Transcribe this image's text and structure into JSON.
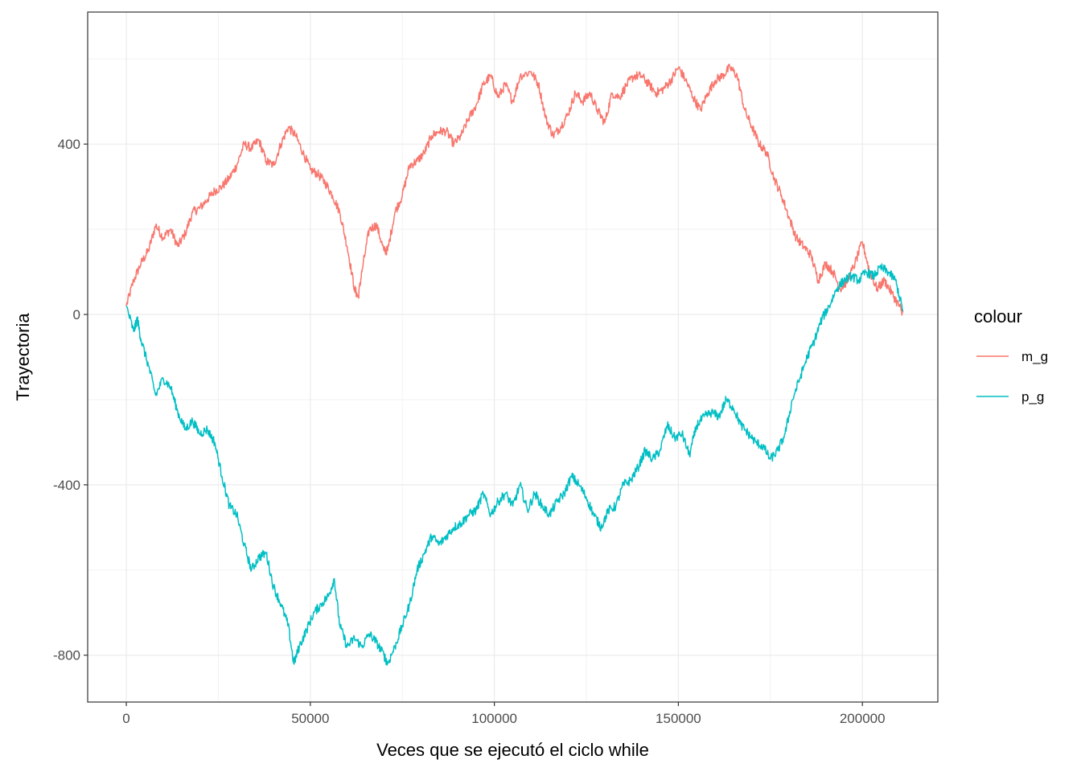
{
  "chart_data": {
    "type": "line",
    "title": "",
    "xlabel": "Veces que se ejecutó el ciclo while",
    "ylabel": "Trayectoria",
    "xlim": [
      -10500,
      220500
    ],
    "ylim": [
      -910,
      710
    ],
    "x_ticks": [
      0,
      50000,
      100000,
      150000,
      200000
    ],
    "x_tick_labels": [
      "0",
      "50000",
      "100000",
      "150000",
      "200000"
    ],
    "y_ticks": [
      -800,
      -400,
      0,
      400
    ],
    "y_tick_labels": [
      "-800",
      "-400",
      "0",
      "400"
    ],
    "grid": true,
    "legend": {
      "title": "colour",
      "placement": "right"
    },
    "series": [
      {
        "name": "m_g",
        "color": "#F8766D",
        "points": [
          [
            0,
            20
          ],
          [
            2000,
            80
          ],
          [
            4000,
            120
          ],
          [
            6000,
            150
          ],
          [
            8000,
            210
          ],
          [
            10000,
            180
          ],
          [
            12000,
            200
          ],
          [
            14000,
            160
          ],
          [
            16000,
            190
          ],
          [
            18000,
            240
          ],
          [
            20000,
            250
          ],
          [
            22000,
            270
          ],
          [
            24000,
            290
          ],
          [
            26000,
            300
          ],
          [
            28000,
            320
          ],
          [
            30000,
            350
          ],
          [
            32000,
            400
          ],
          [
            34000,
            390
          ],
          [
            36000,
            410
          ],
          [
            38000,
            360
          ],
          [
            40000,
            350
          ],
          [
            42000,
            400
          ],
          [
            44000,
            440
          ],
          [
            46000,
            420
          ],
          [
            48000,
            380
          ],
          [
            50000,
            340
          ],
          [
            52000,
            330
          ],
          [
            54000,
            310
          ],
          [
            56000,
            280
          ],
          [
            58000,
            240
          ],
          [
            60000,
            160
          ],
          [
            62000,
            60
          ],
          [
            63000,
            40
          ],
          [
            64000,
            100
          ],
          [
            66000,
            200
          ],
          [
            68000,
            210
          ],
          [
            70000,
            150
          ],
          [
            71000,
            150
          ],
          [
            73000,
            240
          ],
          [
            75000,
            280
          ],
          [
            77000,
            350
          ],
          [
            79000,
            360
          ],
          [
            81000,
            380
          ],
          [
            83000,
            420
          ],
          [
            85000,
            430
          ],
          [
            87000,
            430
          ],
          [
            89000,
            400
          ],
          [
            91000,
            420
          ],
          [
            93000,
            460
          ],
          [
            95000,
            490
          ],
          [
            97000,
            540
          ],
          [
            99000,
            560
          ],
          [
            101000,
            510
          ],
          [
            103000,
            540
          ],
          [
            105000,
            500
          ],
          [
            107000,
            560
          ],
          [
            110000,
            570
          ],
          [
            112000,
            540
          ],
          [
            114000,
            460
          ],
          [
            116000,
            420
          ],
          [
            118000,
            440
          ],
          [
            120000,
            470
          ],
          [
            122000,
            520
          ],
          [
            124000,
            500
          ],
          [
            126000,
            520
          ],
          [
            128000,
            480
          ],
          [
            130000,
            450
          ],
          [
            132000,
            520
          ],
          [
            134000,
            510
          ],
          [
            136000,
            540
          ],
          [
            138000,
            560
          ],
          [
            140000,
            560
          ],
          [
            142000,
            540
          ],
          [
            144000,
            520
          ],
          [
            146000,
            530
          ],
          [
            148000,
            550
          ],
          [
            150000,
            580
          ],
          [
            152000,
            550
          ],
          [
            154000,
            510
          ],
          [
            156000,
            480
          ],
          [
            158000,
            520
          ],
          [
            160000,
            550
          ],
          [
            162000,
            560
          ],
          [
            164000,
            580
          ],
          [
            166000,
            560
          ],
          [
            168000,
            480
          ],
          [
            170000,
            440
          ],
          [
            172000,
            400
          ],
          [
            174000,
            380
          ],
          [
            176000,
            320
          ],
          [
            178000,
            280
          ],
          [
            180000,
            230
          ],
          [
            182000,
            180
          ],
          [
            184000,
            160
          ],
          [
            186000,
            140
          ],
          [
            188000,
            80
          ],
          [
            190000,
            120
          ],
          [
            192000,
            100
          ],
          [
            194000,
            60
          ],
          [
            196000,
            80
          ],
          [
            198000,
            120
          ],
          [
            200000,
            170
          ],
          [
            202000,
            100
          ],
          [
            204000,
            60
          ],
          [
            206000,
            80
          ],
          [
            208000,
            50
          ],
          [
            210000,
            20
          ],
          [
            211000,
            5
          ]
        ]
      },
      {
        "name": "p_g",
        "color": "#00BFC4",
        "points": [
          [
            0,
            20
          ],
          [
            2000,
            -40
          ],
          [
            3000,
            -10
          ],
          [
            4000,
            -60
          ],
          [
            6000,
            -120
          ],
          [
            8000,
            -190
          ],
          [
            10000,
            -150
          ],
          [
            12000,
            -170
          ],
          [
            14000,
            -230
          ],
          [
            16000,
            -270
          ],
          [
            18000,
            -250
          ],
          [
            20000,
            -280
          ],
          [
            22000,
            -270
          ],
          [
            24000,
            -300
          ],
          [
            26000,
            -380
          ],
          [
            28000,
            -450
          ],
          [
            30000,
            -470
          ],
          [
            32000,
            -540
          ],
          [
            34000,
            -600
          ],
          [
            36000,
            -570
          ],
          [
            38000,
            -560
          ],
          [
            40000,
            -640
          ],
          [
            42000,
            -680
          ],
          [
            44000,
            -730
          ],
          [
            45500,
            -820
          ],
          [
            47000,
            -780
          ],
          [
            49000,
            -740
          ],
          [
            51000,
            -700
          ],
          [
            53000,
            -680
          ],
          [
            55000,
            -660
          ],
          [
            56500,
            -620
          ],
          [
            58000,
            -730
          ],
          [
            60000,
            -780
          ],
          [
            62000,
            -760
          ],
          [
            64000,
            -780
          ],
          [
            66000,
            -750
          ],
          [
            68000,
            -770
          ],
          [
            70000,
            -800
          ],
          [
            71000,
            -820
          ],
          [
            73000,
            -780
          ],
          [
            75000,
            -730
          ],
          [
            77000,
            -680
          ],
          [
            79000,
            -600
          ],
          [
            81000,
            -560
          ],
          [
            83000,
            -520
          ],
          [
            85000,
            -540
          ],
          [
            87000,
            -520
          ],
          [
            89000,
            -500
          ],
          [
            91000,
            -490
          ],
          [
            93000,
            -470
          ],
          [
            95000,
            -460
          ],
          [
            97000,
            -420
          ],
          [
            99000,
            -470
          ],
          [
            101000,
            -440
          ],
          [
            103000,
            -420
          ],
          [
            105000,
            -450
          ],
          [
            107000,
            -400
          ],
          [
            109000,
            -460
          ],
          [
            111000,
            -420
          ],
          [
            113000,
            -450
          ],
          [
            115000,
            -470
          ],
          [
            117000,
            -440
          ],
          [
            119000,
            -420
          ],
          [
            121000,
            -380
          ],
          [
            123000,
            -400
          ],
          [
            125000,
            -430
          ],
          [
            127000,
            -470
          ],
          [
            129000,
            -500
          ],
          [
            131000,
            -460
          ],
          [
            133000,
            -450
          ],
          [
            135000,
            -400
          ],
          [
            137000,
            -390
          ],
          [
            139000,
            -360
          ],
          [
            141000,
            -320
          ],
          [
            143000,
            -340
          ],
          [
            145000,
            -320
          ],
          [
            147000,
            -260
          ],
          [
            149000,
            -290
          ],
          [
            151000,
            -280
          ],
          [
            153000,
            -330
          ],
          [
            155000,
            -260
          ],
          [
            157000,
            -240
          ],
          [
            159000,
            -230
          ],
          [
            161000,
            -240
          ],
          [
            163000,
            -200
          ],
          [
            165000,
            -220
          ],
          [
            167000,
            -260
          ],
          [
            169000,
            -280
          ],
          [
            171000,
            -300
          ],
          [
            173000,
            -310
          ],
          [
            175000,
            -340
          ],
          [
            177000,
            -320
          ],
          [
            179000,
            -280
          ],
          [
            181000,
            -200
          ],
          [
            183000,
            -150
          ],
          [
            185000,
            -100
          ],
          [
            187000,
            -60
          ],
          [
            189000,
            -10
          ],
          [
            191000,
            20
          ],
          [
            193000,
            60
          ],
          [
            195000,
            80
          ],
          [
            197000,
            90
          ],
          [
            199000,
            80
          ],
          [
            201000,
            100
          ],
          [
            203000,
            90
          ],
          [
            205000,
            110
          ],
          [
            207000,
            100
          ],
          [
            209000,
            80
          ],
          [
            211000,
            10
          ]
        ]
      }
    ]
  }
}
